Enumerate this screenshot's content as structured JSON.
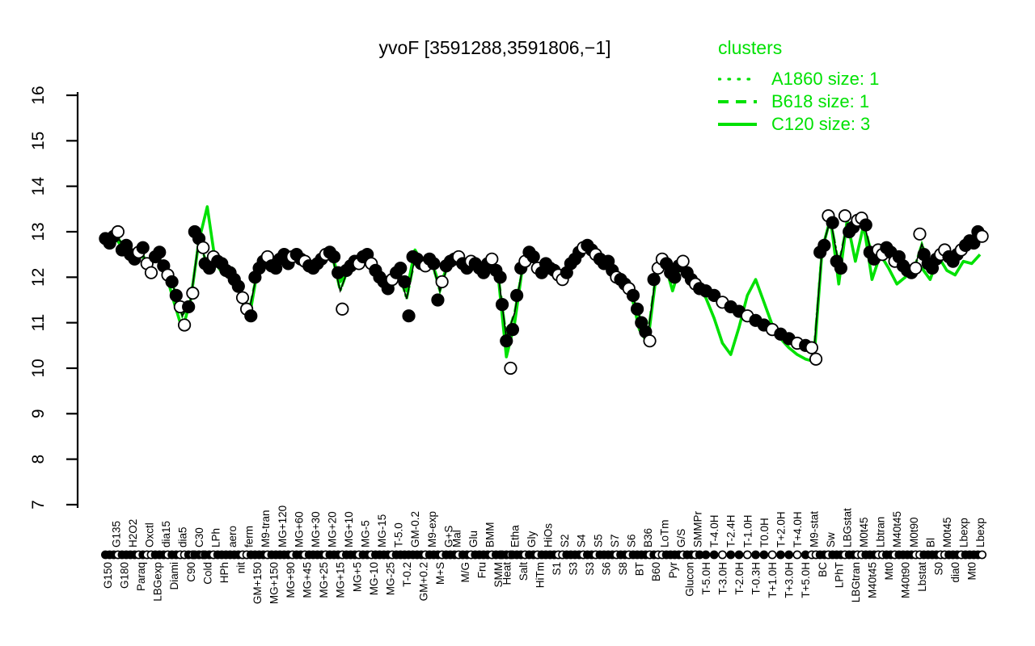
{
  "title": "yvoF [3591288,3591806,−1]",
  "colors": {
    "cluster_green": "#00E103",
    "point_black": "#000000",
    "background": "#FFFFFF"
  },
  "legend": {
    "title": "clusters",
    "items": [
      {
        "label": "A1860 size: 1",
        "style": "dotted"
      },
      {
        "label": "B618 size: 1",
        "style": "dashed"
      },
      {
        "label": "C120 size: 3",
        "style": "solid"
      }
    ]
  },
  "chart_data": {
    "type": "line",
    "title": "yvoF [3591288,3591806,−1]",
    "xlabel": "",
    "ylabel": "",
    "ylim": [
      7,
      16
    ],
    "yticks": [
      7,
      8,
      9,
      10,
      11,
      12,
      13,
      14,
      15,
      16
    ],
    "grid": false,
    "legend_position": "top-right",
    "series_notes": "p = replicate expression values (log2) per condition for gene yvoF, s = marker symbols f=filled o=open, c = cluster C120 mean profile (solid green); dotted A1860 and dashed B618 cluster profiles track the gene profile",
    "conditions": [
      {
        "l": "G150",
        "r": "b",
        "p": [
          12.85,
          12.75
        ],
        "s": "ff",
        "c": 12.7
      },
      {
        "l": "G135",
        "r": "t",
        "p": [
          12.9,
          13.0
        ],
        "s": "fo",
        "c": 12.85
      },
      {
        "l": "G180",
        "r": "b",
        "p": [
          12.6,
          12.7
        ],
        "s": "ff",
        "c": 12.6
      },
      {
        "l": "H2O2",
        "r": "t",
        "p": [
          12.5,
          12.4
        ],
        "s": "ff",
        "c": 12.45
      },
      {
        "l": "Paraq",
        "r": "b",
        "p": [
          12.55,
          12.65
        ],
        "s": "of",
        "c": 12.5
      },
      {
        "l": "Oxctl",
        "r": "t",
        "p": [
          12.3,
          12.1
        ],
        "s": "oo",
        "c": 12.25
      },
      {
        "l": "LBGexp",
        "r": "b",
        "p": [
          12.45,
          12.55
        ],
        "s": "ff",
        "c": 12.5
      },
      {
        "l": "dia15",
        "r": "t",
        "p": [
          12.25,
          12.05
        ],
        "s": "fo",
        "c": 12.1
      },
      {
        "l": "Diami",
        "r": "b",
        "p": [
          11.9,
          11.6
        ],
        "s": "ff",
        "c": 11.45
      },
      {
        "l": "dia5",
        "r": "t",
        "p": [
          11.35,
          10.95
        ],
        "s": "oo",
        "c": 10.85
      },
      {
        "l": "C90",
        "r": "b",
        "p": [
          11.35,
          11.65
        ],
        "s": "fo",
        "c": 11.5
      },
      {
        "l": "C30",
        "r": "t",
        "p": [
          13.0,
          12.85,
          12.65
        ],
        "s": "ffo",
        "c": 12.8
      },
      {
        "l": "Cold",
        "r": "b",
        "p": [
          12.3,
          12.2
        ],
        "s": "ff",
        "c": 13.55
      },
      {
        "l": "LPh",
        "r": "t",
        "p": [
          12.45,
          12.35
        ],
        "s": "of",
        "c": 12.3
      },
      {
        "l": "HPh",
        "r": "b",
        "p": [
          12.3,
          12.15
        ],
        "s": "ff",
        "c": 12.05
      },
      {
        "l": "aero",
        "r": "t",
        "p": [
          12.1,
          11.95
        ],
        "s": "ff",
        "c": 12.2
      },
      {
        "l": "nit",
        "r": "b",
        "p": [
          11.8,
          11.55
        ],
        "s": "fo",
        "c": 11.6
      },
      {
        "l": "ferm",
        "r": "t",
        "p": [
          11.3,
          11.15
        ],
        "s": "of",
        "c": 11.05
      },
      {
        "l": "GM+150",
        "r": "b",
        "p": [
          12.0,
          12.2
        ],
        "s": "ff",
        "c": 12.1
      },
      {
        "l": "M9-tran",
        "r": "t",
        "p": [
          12.35,
          12.45
        ],
        "s": "fo",
        "c": 12.35
      },
      {
        "l": "MG+150",
        "r": "b",
        "p": [
          12.25,
          12.2
        ],
        "s": "ff",
        "c": 12.2
      },
      {
        "l": "MG+120",
        "r": "t",
        "p": [
          12.4,
          12.5
        ],
        "s": "ff",
        "c": 12.45
      },
      {
        "l": "MG+90",
        "r": "b",
        "p": [
          12.3,
          12.45
        ],
        "s": "fo",
        "c": 12.35
      },
      {
        "l": "MG+60",
        "r": "t",
        "p": [
          12.5,
          12.4
        ],
        "s": "ff",
        "c": 12.45
      },
      {
        "l": "MG+45",
        "r": "b",
        "p": [
          12.35,
          12.25
        ],
        "s": "of",
        "c": 12.3
      },
      {
        "l": "MG+30",
        "r": "t",
        "p": [
          12.2,
          12.3
        ],
        "s": "ff",
        "c": 12.25
      },
      {
        "l": "MG+25",
        "r": "b",
        "p": [
          12.4,
          12.5
        ],
        "s": "fo",
        "c": 12.4
      },
      {
        "l": "MG+20",
        "r": "t",
        "p": [
          12.55,
          12.45
        ],
        "s": "ff",
        "c": 12.5
      },
      {
        "l": "MG+15",
        "r": "b",
        "p": [
          12.1,
          11.3
        ],
        "s": "fo",
        "c": 11.9
      },
      {
        "l": "MG+10",
        "r": "t",
        "p": [
          12.15,
          12.25
        ],
        "s": "ff",
        "c": 12.2
      },
      {
        "l": "MG+5",
        "r": "b",
        "p": [
          12.35,
          12.3
        ],
        "s": "fo",
        "c": 12.3
      },
      {
        "l": "MG-5",
        "r": "t",
        "p": [
          12.45,
          12.5
        ],
        "s": "ff",
        "c": 12.5
      },
      {
        "l": "MG-10",
        "r": "b",
        "p": [
          12.3,
          12.15
        ],
        "s": "of",
        "c": 12.2
      },
      {
        "l": "MG-15",
        "r": "t",
        "p": [
          12.0,
          11.9
        ],
        "s": "ff",
        "c": 11.95
      },
      {
        "l": "MG-25",
        "r": "b",
        "p": [
          11.75,
          11.95
        ],
        "s": "fo",
        "c": 11.65
      },
      {
        "l": "T-5.0",
        "r": "t",
        "p": [
          12.1,
          12.2
        ],
        "s": "ff",
        "c": 12.15
      },
      {
        "l": "T-0.2",
        "r": "b",
        "p": [
          11.9,
          11.15
        ],
        "s": "ff",
        "c": 11.7
      },
      {
        "l": "GM-0.2",
        "r": "t",
        "p": [
          12.45,
          12.4
        ],
        "s": "ff",
        "c": 12.6
      },
      {
        "l": "GM+0.2",
        "r": "b",
        "p": [
          12.3,
          12.25
        ],
        "s": "fo",
        "c": 12.3
      },
      {
        "l": "M9-exp",
        "r": "t",
        "p": [
          12.4,
          12.3
        ],
        "s": "ff",
        "c": 12.35
      },
      {
        "l": "M+S",
        "r": "b",
        "p": [
          11.5,
          11.9
        ],
        "s": "fo",
        "c": 11.8
      },
      {
        "l": "G+S",
        "r": "t",
        "p": [
          12.25,
          12.35
        ],
        "s": "ff",
        "c": 12.3
      },
      {
        "l": "Mal",
        "r": "t",
        "p": [
          12.4,
          12.45
        ],
        "s": "fo",
        "c": 12.4
      },
      {
        "l": "M/G",
        "r": "b",
        "p": [
          12.3,
          12.2
        ],
        "s": "ff",
        "c": 12.25
      },
      {
        "l": "Glu",
        "r": "t",
        "p": [
          12.35,
          12.3
        ],
        "s": "of",
        "c": 12.3
      },
      {
        "l": "Fru",
        "r": "b",
        "p": [
          12.2,
          12.1
        ],
        "s": "ff",
        "c": 12.15
      },
      {
        "l": "BMM",
        "r": "t",
        "p": [
          12.3,
          12.4
        ],
        "s": "fo",
        "c": 12.35
      },
      {
        "l": "SMM",
        "r": "b",
        "p": [
          12.15,
          12.0
        ],
        "s": "ff",
        "c": 12.05
      },
      {
        "l": "Heat",
        "r": "b",
        "p": [
          11.4,
          10.6,
          10.0
        ],
        "s": "ffo",
        "c": 10.25
      },
      {
        "l": "Etha",
        "r": "t",
        "p": [
          10.85,
          11.6
        ],
        "s": "ff",
        "c": 11.0
      },
      {
        "l": "Salt",
        "r": "b",
        "p": [
          12.2,
          12.35
        ],
        "s": "fo",
        "c": 12.3
      },
      {
        "l": "Gly",
        "r": "t",
        "p": [
          12.55,
          12.45
        ],
        "s": "ff",
        "c": 12.6
      },
      {
        "l": "HiTm",
        "r": "b",
        "p": [
          12.2,
          12.1
        ],
        "s": "of",
        "c": 12.15
      },
      {
        "l": "HiOs",
        "r": "t",
        "p": [
          12.3,
          12.2
        ],
        "s": "ff",
        "c": 12.25
      },
      {
        "l": "S1",
        "r": "b",
        "p": [
          12.15,
          12.05
        ],
        "s": "fo",
        "c": 12.1
      },
      {
        "l": "S2",
        "r": "t",
        "p": [
          11.95,
          12.1
        ],
        "s": "of",
        "c": 12.0
      },
      {
        "l": "S3",
        "r": "b",
        "p": [
          12.3,
          12.4
        ],
        "s": "ff",
        "c": 12.35
      },
      {
        "l": "S4",
        "r": "t",
        "p": [
          12.55,
          12.65
        ],
        "s": "fo",
        "c": 12.6
      },
      {
        "l": "S3",
        "r": "b",
        "p": [
          12.7,
          12.6
        ],
        "s": "ff",
        "c": 12.65
      },
      {
        "l": "S5",
        "r": "t",
        "p": [
          12.5,
          12.4
        ],
        "s": "of",
        "c": 12.45
      },
      {
        "l": "S6",
        "r": "b",
        "p": [
          12.3,
          12.35
        ],
        "s": "ff",
        "c": 12.3
      },
      {
        "l": "S7",
        "r": "t",
        "p": [
          12.15,
          12.0
        ],
        "s": "fo",
        "c": 12.05
      },
      {
        "l": "S8",
        "r": "b",
        "p": [
          11.95,
          11.85
        ],
        "s": "ff",
        "c": 11.9
      },
      {
        "l": "S6",
        "r": "t",
        "p": [
          11.75,
          11.6
        ],
        "s": "of",
        "c": 11.65
      },
      {
        "l": "BT",
        "r": "b",
        "p": [
          11.3,
          11.0
        ],
        "s": "ff",
        "c": 10.85
      },
      {
        "l": "B36",
        "r": "t",
        "p": [
          10.8,
          10.6
        ],
        "s": "fo",
        "c": 10.55
      },
      {
        "l": "B60",
        "r": "b",
        "p": [
          11.95,
          12.2
        ],
        "s": "fo",
        "c": 12.0
      },
      {
        "l": "LoTm",
        "r": "t",
        "p": [
          12.4,
          12.3
        ],
        "s": "of",
        "c": 12.35
      },
      {
        "l": "Pyr",
        "r": "b",
        "p": [
          12.1,
          12.0
        ],
        "s": "ff",
        "c": 11.7
      },
      {
        "l": "G/S",
        "r": "t",
        "p": [
          12.25,
          12.35
        ],
        "s": "fo",
        "c": 12.3
      },
      {
        "l": "Glucon",
        "r": "b",
        "p": [
          12.1,
          11.95
        ],
        "s": "ff",
        "c": 12.0
      },
      {
        "l": "SMMPr",
        "r": "t",
        "p": [
          11.85,
          11.75
        ],
        "s": "of",
        "c": 11.8
      },
      {
        "l": "T-5.0H",
        "r": "b",
        "p": [
          11.7
        ],
        "s": "f",
        "c": 11.55
      },
      {
        "l": "T-4.0H",
        "r": "t",
        "p": [
          11.6
        ],
        "s": "f",
        "c": 11.1
      },
      {
        "l": "T-3.0H",
        "r": "b",
        "p": [
          11.45
        ],
        "s": "o",
        "c": 10.55
      },
      {
        "l": "T-2.4H",
        "r": "t",
        "p": [
          11.35
        ],
        "s": "f",
        "c": 10.3
      },
      {
        "l": "T-2.0H",
        "r": "b",
        "p": [
          11.25
        ],
        "s": "f",
        "c": 10.9
      },
      {
        "l": "T-1.0H",
        "r": "t",
        "p": [
          11.15
        ],
        "s": "o",
        "c": 11.6
      },
      {
        "l": "T-0.3H",
        "r": "b",
        "p": [
          11.05
        ],
        "s": "f",
        "c": 11.95
      },
      {
        "l": "T0.0H",
        "r": "t",
        "p": [
          10.95
        ],
        "s": "f",
        "c": 11.45
      },
      {
        "l": "T+1.0H",
        "r": "b",
        "p": [
          10.85
        ],
        "s": "o",
        "c": 10.95
      },
      {
        "l": "T+2.0H",
        "r": "t",
        "p": [
          10.75
        ],
        "s": "f",
        "c": 10.65
      },
      {
        "l": "T+3.0H",
        "r": "b",
        "p": [
          10.65
        ],
        "s": "f",
        "c": 10.45
      },
      {
        "l": "T+4.0H",
        "r": "t",
        "p": [
          10.55
        ],
        "s": "o",
        "c": 10.3
      },
      {
        "l": "T+5.0H",
        "r": "b",
        "p": [
          10.5
        ],
        "s": "f",
        "c": 10.2
      },
      {
        "l": "M9-stat",
        "r": "t",
        "p": [
          10.45,
          10.2
        ],
        "s": "oo",
        "c": 10.15
      },
      {
        "l": "BC",
        "r": "b",
        "p": [
          12.55,
          12.7
        ],
        "s": "ff",
        "c": 12.6
      },
      {
        "l": "Sw",
        "r": "t",
        "p": [
          13.35,
          13.2
        ],
        "s": "of",
        "c": 13.3
      },
      {
        "l": "LPhT",
        "r": "b",
        "p": [
          12.35,
          12.2
        ],
        "s": "ff",
        "c": 11.85
      },
      {
        "l": "LBGstat",
        "r": "t",
        "p": [
          13.35,
          13.0
        ],
        "s": "of",
        "c": 13.25
      },
      {
        "l": "LBGtran",
        "r": "b",
        "p": [
          13.1,
          13.25
        ],
        "s": "fo",
        "c": 12.35
      },
      {
        "l": "M0t45",
        "r": "t",
        "p": [
          13.3,
          13.15
        ],
        "s": "of",
        "c": 13.15
      },
      {
        "l": "M40t45",
        "r": "b",
        "p": [
          12.55,
          12.4
        ],
        "s": "ff",
        "c": 11.95
      },
      {
        "l": "Lbtran",
        "r": "t",
        "p": [
          12.6,
          12.5
        ],
        "s": "oo",
        "c": 12.5
      },
      {
        "l": "Mt0",
        "r": "b",
        "p": [
          12.65,
          12.55
        ],
        "s": "ff",
        "c": 12.2
      },
      {
        "l": "M40t45",
        "r": "t",
        "p": [
          12.35,
          12.45
        ],
        "s": "of",
        "c": 11.85
      },
      {
        "l": "M40t90",
        "r": "b",
        "p": [
          12.25,
          12.15
        ],
        "s": "ff",
        "c": 12.0
      },
      {
        "l": "M0t90",
        "r": "t",
        "p": [
          12.1,
          12.2
        ],
        "s": "fo",
        "c": 12.25
      },
      {
        "l": "Lbstat",
        "r": "b",
        "p": [
          12.95,
          12.5
        ],
        "s": "of",
        "c": 12.2
      },
      {
        "l": "Bl",
        "r": "t",
        "p": [
          12.3,
          12.2
        ],
        "s": "ff",
        "c": 11.95
      },
      {
        "l": "S0",
        "r": "b",
        "p": [
          12.4,
          12.5
        ],
        "s": "fo",
        "c": 12.45
      },
      {
        "l": "M0t45",
        "r": "t",
        "p": [
          12.6,
          12.45
        ],
        "s": "of",
        "c": 12.15
      },
      {
        "l": "dia0",
        "r": "b",
        "p": [
          12.35,
          12.5
        ],
        "s": "ff",
        "c": 12.05
      },
      {
        "l": "Lbexp",
        "r": "t",
        "p": [
          12.6,
          12.7
        ],
        "s": "of",
        "c": 12.35
      },
      {
        "l": "Mt0",
        "r": "b",
        "p": [
          12.8,
          12.75
        ],
        "s": "ff",
        "c": 12.3
      },
      {
        "l": "Lbexp",
        "r": "t",
        "p": [
          13.0,
          12.9
        ],
        "s": "fo",
        "c": 12.5
      }
    ]
  }
}
